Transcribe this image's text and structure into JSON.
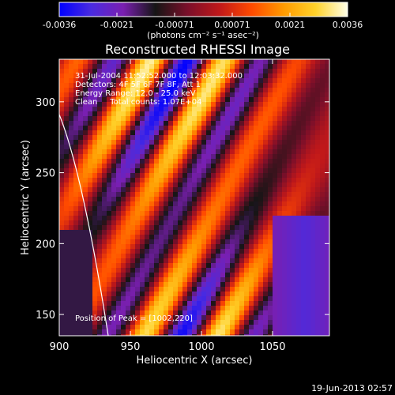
{
  "colorbar": {
    "ticks": [
      "-0.0036",
      "-0.0021",
      "-0.00071",
      "0.00071",
      "0.0021",
      "0.0036"
    ],
    "units": "(photons cm⁻² s⁻¹ asec⁻²)",
    "stops": [
      "#0000ff",
      "#4a2be0",
      "#7a1fb0",
      "#151515",
      "#7a0f2a",
      "#c0181a",
      "#ff4a00",
      "#ff9a00",
      "#ffd22a",
      "#ffffe8"
    ]
  },
  "title": "Reconstructed RHESSI Image",
  "info": {
    "line1": "31-Jul-2004 11:52:52.000 to 12:03:32.000",
    "line2": "Detectors: 4F 5F 6F 7F 8F, Att 1",
    "line3": "Energy Range: 12.0 - 25.0 keV",
    "line4": "Clean     Total counts: 1.07E+04"
  },
  "peak_text": "Position of Peak = [1002,220]",
  "axes": {
    "xlabel": "Heliocentric X (arcsec)",
    "ylabel": "Heliocentric Y (arcsec)",
    "xlim": [
      900,
      1090
    ],
    "ylim": [
      135,
      330
    ],
    "xticks": [
      900,
      950,
      1000,
      1050
    ],
    "yticks": [
      150,
      200,
      250,
      300
    ]
  },
  "timestamp": "19-Jun-2013 02:57"
}
